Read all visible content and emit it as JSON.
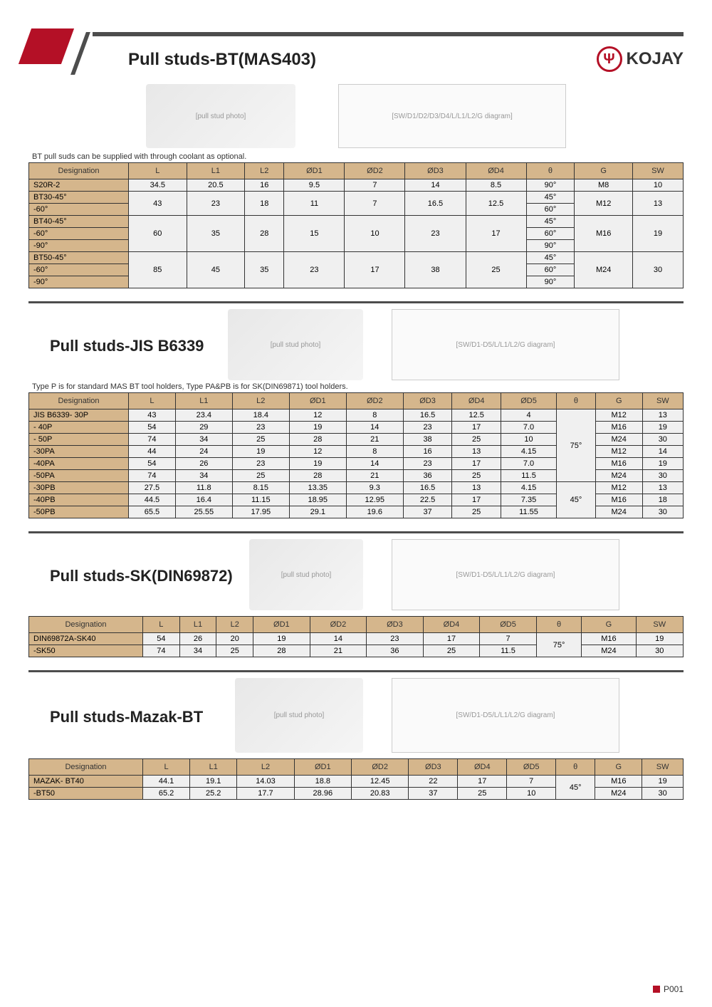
{
  "brand": "KOJAY",
  "page_number": "P001",
  "colors": {
    "accent": "#b41026",
    "header_gray": "#4d4d4d",
    "table_header_bg": "#d5b68c",
    "cell_bg": "#f0f0f0",
    "text": "#333333"
  },
  "section1": {
    "title": "Pull studs-BT(MAS403)",
    "note": "BT pull suds can be supplied with through coolant as optional.",
    "columns": [
      "Designation",
      "L",
      "L1",
      "L2",
      "ØD1",
      "ØD2",
      "ØD3",
      "ØD4",
      "θ",
      "G",
      "SW"
    ],
    "rows": [
      {
        "des": "S20R-2",
        "L": "34.5",
        "L1": "20.5",
        "L2": "16",
        "D1": "9.5",
        "D2": "7",
        "D3": "14",
        "D4": "8.5",
        "theta": "90°",
        "G": "M8",
        "SW": "10",
        "span": 1
      },
      {
        "des": "BT30-45°",
        "L": "43",
        "L1": "23",
        "L2": "18",
        "D1": "11",
        "D2": "7",
        "D3": "16.5",
        "D4": "12.5",
        "theta": "45°",
        "G": "M12",
        "SW": "13",
        "span": 2
      },
      {
        "des": "-60°",
        "theta": "60°"
      },
      {
        "des": "BT40-45°",
        "L": "60",
        "L1": "35",
        "L2": "28",
        "D1": "15",
        "D2": "10",
        "D3": "23",
        "D4": "17",
        "theta": "45°",
        "G": "M16",
        "SW": "19",
        "span": 3
      },
      {
        "des": "-60°",
        "theta": "60°"
      },
      {
        "des": "-90°",
        "theta": "90°"
      },
      {
        "des": "BT50-45°",
        "L": "85",
        "L1": "45",
        "L2": "35",
        "D1": "23",
        "D2": "17",
        "D3": "38",
        "D4": "25",
        "theta": "45°",
        "G": "M24",
        "SW": "30",
        "span": 3
      },
      {
        "des": "-60°",
        "theta": "60°"
      },
      {
        "des": "-90°",
        "theta": "90°"
      }
    ]
  },
  "section2": {
    "title": "Pull studs-JIS B6339",
    "note": "Type P is for standard MAS BT tool holders, Type PA&PB is for SK(DIN69871) tool holders.",
    "columns": [
      "Designation",
      "L",
      "L1",
      "L2",
      "ØD1",
      "ØD2",
      "ØD3",
      "ØD4",
      "ØD5",
      "θ",
      "G",
      "SW"
    ],
    "rows": [
      {
        "des": "JIS B6339- 30P",
        "L": "43",
        "L1": "23.4",
        "L2": "18.4",
        "D1": "12",
        "D2": "8",
        "D3": "16.5",
        "D4": "12.5",
        "D5": "4",
        "theta": "75°",
        "thetaspan": 6,
        "G": "M12",
        "SW": "13"
      },
      {
        "des": "- 40P",
        "L": "54",
        "L1": "29",
        "L2": "23",
        "D1": "19",
        "D2": "14",
        "D3": "23",
        "D4": "17",
        "D5": "7.0",
        "G": "M16",
        "SW": "19"
      },
      {
        "des": "- 50P",
        "L": "74",
        "L1": "34",
        "L2": "25",
        "D1": "28",
        "D2": "21",
        "D3": "38",
        "D4": "25",
        "D5": "10",
        "G": "M24",
        "SW": "30"
      },
      {
        "des": "-30PA",
        "L": "44",
        "L1": "24",
        "L2": "19",
        "D1": "12",
        "D2": "8",
        "D3": "16",
        "D4": "13",
        "D5": "4.15",
        "G": "M12",
        "SW": "14"
      },
      {
        "des": "-40PA",
        "L": "54",
        "L1": "26",
        "L2": "23",
        "D1": "19",
        "D2": "14",
        "D3": "23",
        "D4": "17",
        "D5": "7.0",
        "G": "M16",
        "SW": "19"
      },
      {
        "des": "-50PA",
        "L": "74",
        "L1": "34",
        "L2": "25",
        "D1": "28",
        "D2": "21",
        "D3": "36",
        "D4": "25",
        "D5": "11.5",
        "G": "M24",
        "SW": "30"
      },
      {
        "des": "-30PB",
        "L": "27.5",
        "L1": "11.8",
        "L2": "8.15",
        "D1": "13.35",
        "D2": "9.3",
        "D3": "16.5",
        "D4": "13",
        "D5": "4.15",
        "theta": "45°",
        "thetaspan": 3,
        "G": "M12",
        "SW": "13"
      },
      {
        "des": "-40PB",
        "L": "44.5",
        "L1": "16.4",
        "L2": "11.15",
        "D1": "18.95",
        "D2": "12.95",
        "D3": "22.5",
        "D4": "17",
        "D5": "7.35",
        "G": "M16",
        "SW": "18"
      },
      {
        "des": "-50PB",
        "L": "65.5",
        "L1": "25.55",
        "L2": "17.95",
        "D1": "29.1",
        "D2": "19.6",
        "D3": "37",
        "D4": "25",
        "D5": "11.55",
        "G": "M24",
        "SW": "30"
      }
    ]
  },
  "section3": {
    "title": "Pull studs-SK(DIN69872)",
    "columns": [
      "Designation",
      "L",
      "L1",
      "L2",
      "ØD1",
      "ØD2",
      "ØD3",
      "ØD4",
      "ØD5",
      "θ",
      "G",
      "SW"
    ],
    "rows": [
      {
        "des": "DIN69872A-SK40",
        "L": "54",
        "L1": "26",
        "L2": "20",
        "D1": "19",
        "D2": "14",
        "D3": "23",
        "D4": "17",
        "D5": "7",
        "theta": "75°",
        "thetaspan": 2,
        "G": "M16",
        "SW": "19"
      },
      {
        "des": "-SK50",
        "L": "74",
        "L1": "34",
        "L2": "25",
        "D1": "28",
        "D2": "21",
        "D3": "36",
        "D4": "25",
        "D5": "11.5",
        "G": "M24",
        "SW": "30"
      }
    ]
  },
  "section4": {
    "title": "Pull studs-Mazak-BT",
    "columns": [
      "Designation",
      "L",
      "L1",
      "L2",
      "ØD1",
      "ØD2",
      "ØD3",
      "ØD4",
      "ØD5",
      "θ",
      "G",
      "SW"
    ],
    "rows": [
      {
        "des": "MAZAK- BT40",
        "L": "44.1",
        "L1": "19.1",
        "L2": "14.03",
        "D1": "18.8",
        "D2": "12.45",
        "D3": "22",
        "D4": "17",
        "D5": "7",
        "theta": "45°",
        "thetaspan": 2,
        "G": "M16",
        "SW": "19"
      },
      {
        "des": "-BT50",
        "L": "65.2",
        "L1": "25.2",
        "L2": "17.7",
        "D1": "28.96",
        "D2": "20.83",
        "D3": "37",
        "D4": "25",
        "D5": "10",
        "G": "M24",
        "SW": "30"
      }
    ]
  }
}
